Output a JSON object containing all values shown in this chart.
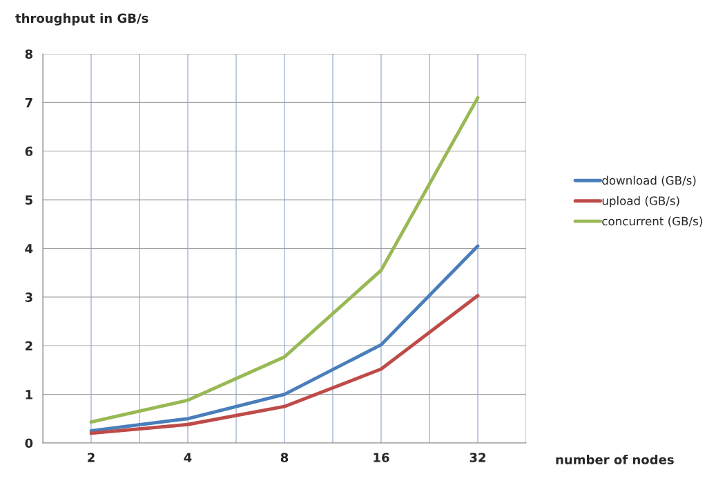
{
  "chart_data": {
    "type": "line",
    "ylabel": "throughput in GB/s",
    "xlabel": "number of nodes",
    "categories": [
      "2",
      "4",
      "8",
      "16",
      "32"
    ],
    "series": [
      {
        "name": "download (GB/s)",
        "color": "#4a7ebb",
        "values": [
          0.25,
          0.5,
          1.0,
          2.02,
          4.05
        ]
      },
      {
        "name": "upload (GB/s)",
        "color": "#be4b48",
        "values": [
          0.2,
          0.38,
          0.75,
          1.52,
          3.03
        ]
      },
      {
        "name": "concurrent (GB/s)",
        "color": "#98b954",
        "values": [
          0.43,
          0.88,
          1.77,
          3.55,
          7.1
        ]
      }
    ],
    "ylim": [
      0,
      8
    ],
    "yticks": [
      0,
      1,
      2,
      3,
      4,
      5,
      6,
      7,
      8
    ],
    "grid": true,
    "legend": "right",
    "marker": "none",
    "line_style": "solid"
  }
}
